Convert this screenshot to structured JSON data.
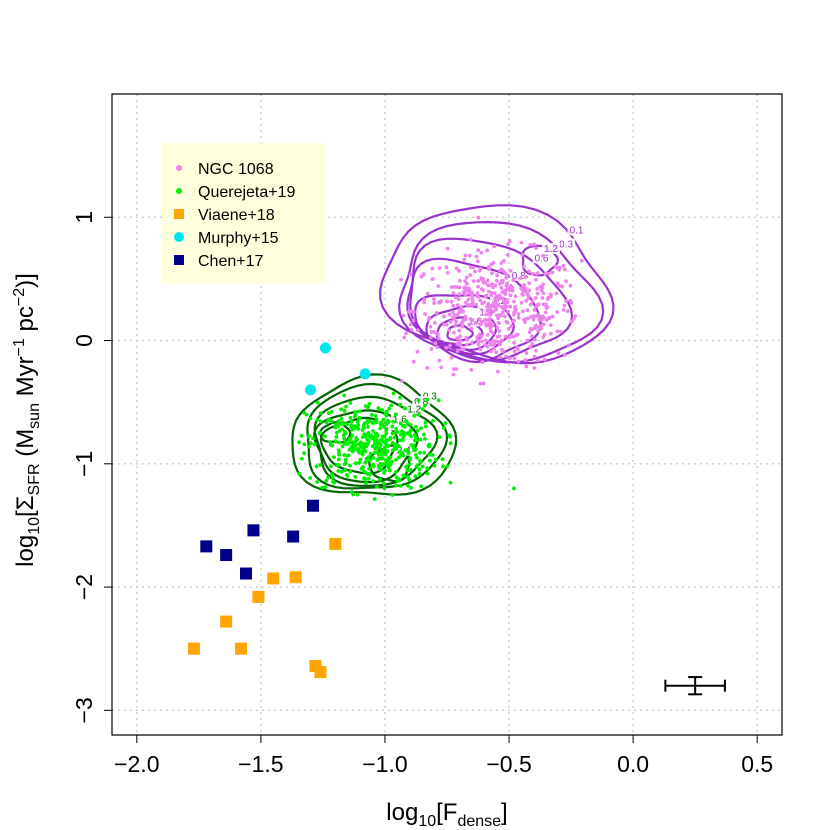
{
  "chart_data": {
    "type": "scatter",
    "title": "",
    "xlabel": {
      "base": "log",
      "sub1": "10",
      "open": "[F",
      "sub2": "dense",
      "close": "]"
    },
    "ylabel": {
      "base": "log",
      "sub1": "10",
      "open": "[Σ",
      "sub2": "SFR",
      "mid": " (M",
      "sub3": "sun",
      "unit1": " Myr",
      "sup1": "−1",
      "unit2": " pc",
      "sup2": "−2",
      "close": ")]"
    },
    "xlim": [
      -2.1,
      0.6
    ],
    "ylim": [
      -3.2,
      2.0
    ],
    "xticks": [
      {
        "value": -2.0,
        "label": "−2.0"
      },
      {
        "value": -1.5,
        "label": "−1.5"
      },
      {
        "value": -1.0,
        "label": "−1.0"
      },
      {
        "value": -0.5,
        "label": "−0.5"
      },
      {
        "value": 0.0,
        "label": "0.0"
      },
      {
        "value": 0.5,
        "label": "0.5"
      }
    ],
    "yticks": [
      {
        "value": 1,
        "label": "1"
      },
      {
        "value": 0,
        "label": "0"
      },
      {
        "value": -1,
        "label": "−1"
      },
      {
        "value": -2,
        "label": "−2"
      },
      {
        "value": -3,
        "label": "−3"
      }
    ],
    "grid": true,
    "legend_position": "top-left",
    "legend_bg": "#ffffdd",
    "colors": {
      "ngc": "#ee82ee",
      "querejeta": "#00ee00",
      "viaene": "#ffa500",
      "murphy": "#00e5ee",
      "chen": "#00008b",
      "ngc_contour": "#9a32cd",
      "querejeta_contour": "#006400"
    },
    "series": [
      {
        "name": "NGC 1068",
        "marker": "small-circle",
        "color": "#ee82ee",
        "cloud": {
          "center": [
            -0.55,
            0.25
          ],
          "spread": [
            0.28,
            0.38
          ],
          "count": 500,
          "x_range": [
            -0.95,
            -0.2
          ],
          "y_range": [
            -0.4,
            1.05
          ]
        }
      },
      {
        "name": "Querejeta+19",
        "marker": "small-circle",
        "color": "#00ee00",
        "cloud": {
          "center": [
            -1.05,
            -0.85
          ],
          "spread": [
            0.22,
            0.3
          ],
          "count": 450,
          "x_range": [
            -1.35,
            -0.65
          ],
          "y_range": [
            -1.3,
            -0.3
          ]
        },
        "outliers": [
          {
            "x": -0.48,
            "y": -1.2
          }
        ]
      },
      {
        "name": "Viaene+18",
        "marker": "square",
        "color": "#ffa500",
        "points": [
          {
            "x": -1.77,
            "y": -2.5
          },
          {
            "x": -1.64,
            "y": -2.28
          },
          {
            "x": -1.58,
            "y": -2.5
          },
          {
            "x": -1.51,
            "y": -2.08
          },
          {
            "x": -1.45,
            "y": -1.93
          },
          {
            "x": -1.36,
            "y": -1.92
          },
          {
            "x": -1.2,
            "y": -1.65
          },
          {
            "x": -1.28,
            "y": -2.64
          },
          {
            "x": -1.26,
            "y": -2.69
          }
        ]
      },
      {
        "name": "Murphy+15",
        "marker": "circle",
        "color": "#00e5ee",
        "points": [
          {
            "x": -1.24,
            "y": -0.06
          },
          {
            "x": -1.08,
            "y": -0.27
          },
          {
            "x": -1.3,
            "y": -0.4
          }
        ]
      },
      {
        "name": "Chen+17",
        "marker": "square",
        "color": "#00008b",
        "points": [
          {
            "x": -1.72,
            "y": -1.67
          },
          {
            "x": -1.64,
            "y": -1.74
          },
          {
            "x": -1.56,
            "y": -1.89
          },
          {
            "x": -1.53,
            "y": -1.54
          },
          {
            "x": -1.37,
            "y": -1.59
          },
          {
            "x": -1.29,
            "y": -1.34
          }
        ]
      }
    ],
    "contours": [
      {
        "group": "NGC 1068",
        "color": "#9a32cd",
        "rings": [
          {
            "label": "0.1",
            "cx": -0.55,
            "cy": 0.45,
            "rx": 0.46,
            "ry": 0.62,
            "rot": 10
          },
          {
            "label": "0.3",
            "cx": -0.55,
            "cy": 0.38,
            "rx": 0.4,
            "ry": 0.56,
            "rot": 10
          },
          {
            "label": "0.6",
            "cx": -0.6,
            "cy": 0.33,
            "rx": 0.33,
            "ry": 0.47,
            "rot": 15
          },
          {
            "label": "0.8",
            "cx": -0.65,
            "cy": 0.25,
            "rx": 0.27,
            "ry": 0.38,
            "rot": 20
          },
          {
            "label": "1.2",
            "cx": -0.68,
            "cy": 0.15,
            "rx": 0.2,
            "ry": 0.23,
            "rot": 10
          },
          {
            "label": "1.4",
            "cx": -0.69,
            "cy": 0.1,
            "rx": 0.14,
            "ry": 0.17,
            "rot": 0
          },
          {
            "label": "1.6",
            "cx": -0.7,
            "cy": 0.07,
            "rx": 0.09,
            "ry": 0.11,
            "rot": 0
          },
          {
            "label": "",
            "cx": -0.7,
            "cy": 0.06,
            "rx": 0.05,
            "ry": 0.06,
            "rot": 0
          },
          {
            "label": "1.2",
            "cx": -0.38,
            "cy": 0.65,
            "rx": 0.07,
            "ry": 0.12,
            "rot": 0
          }
        ]
      },
      {
        "group": "Querejeta+19",
        "color": "#006400",
        "rings": [
          {
            "label": "0.3",
            "cx": -1.05,
            "cy": -0.8,
            "rx": 0.33,
            "ry": 0.48,
            "rot": 0
          },
          {
            "label": "0.8",
            "cx": -1.05,
            "cy": -0.8,
            "rx": 0.28,
            "ry": 0.42,
            "rot": 0
          },
          {
            "label": "1.2",
            "cx": -1.05,
            "cy": -0.82,
            "rx": 0.24,
            "ry": 0.36,
            "rot": 0
          },
          {
            "label": "1.6",
            "cx": -1.08,
            "cy": -0.85,
            "rx": 0.2,
            "ry": 0.29,
            "rot": 0
          },
          {
            "label": "2",
            "cx": -1.1,
            "cy": -0.85,
            "rx": 0.15,
            "ry": 0.22,
            "rot": 0
          },
          {
            "label": "2.4",
            "cx": -0.98,
            "cy": -1.0,
            "rx": 0.08,
            "ry": 0.14,
            "rot": 0
          },
          {
            "label": "",
            "cx": -1.2,
            "cy": -0.75,
            "rx": 0.06,
            "ry": 0.08,
            "rot": 0
          }
        ]
      }
    ],
    "error_bar": {
      "x": 0.25,
      "y": -2.8,
      "xerr": 0.12,
      "yerr": 0.07
    }
  }
}
